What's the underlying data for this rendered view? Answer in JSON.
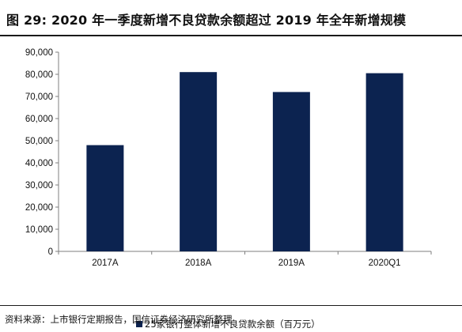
{
  "figure": {
    "title": "图 29:  2020 年一季度新增不良贷款余额超过 2019 年全年新增规模",
    "source": "资料来源：上市银行定期报告，国信证券经济研究所整理"
  },
  "colors": {
    "bar": "#0c2350",
    "axis": "#7f7f7f",
    "text": "#111111"
  },
  "chart_data": {
    "type": "bar",
    "title": "",
    "xlabel": "",
    "ylabel": "",
    "categories": [
      "2017A",
      "2018A",
      "2019A",
      "2020Q1"
    ],
    "series": [
      {
        "name": "25家银行整体新增不良贷款余额（百万元）",
        "values": [
          48000,
          81000,
          72000,
          80500
        ]
      }
    ],
    "ylim": [
      0,
      90000
    ],
    "yticks": [
      0,
      10000,
      20000,
      30000,
      40000,
      50000,
      60000,
      70000,
      80000,
      90000
    ],
    "ytick_labels": [
      "0",
      "10,000",
      "20,000",
      "30,000",
      "40,000",
      "50,000",
      "60,000",
      "70,000",
      "80,000",
      "90,000"
    ],
    "grid": false,
    "legend_position": "bottom"
  }
}
